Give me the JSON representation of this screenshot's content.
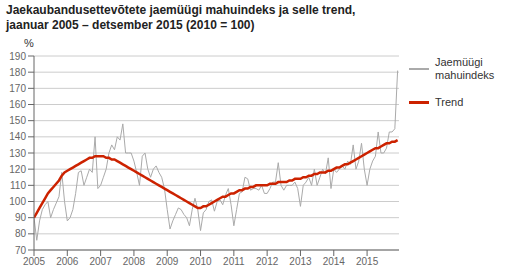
{
  "chart_data": {
    "type": "line",
    "title": "Jaekaubandusettevõtete jaemüügi mahuindeks ja selle trend,",
    "subtitle": "jaanuar 2005 – detsember 2015 (2010 = 100)",
    "y_label": "%",
    "x": [
      2005,
      2005.083333333333,
      2005.166666666667,
      2005.25,
      2005.333333333333,
      2005.416666666667,
      2005.5,
      2005.583333333333,
      2005.666666666667,
      2005.75,
      2005.833333333333,
      2005.916666666667,
      2006,
      2006.083333333333,
      2006.166666666667,
      2006.25,
      2006.333333333333,
      2006.416666666667,
      2006.5,
      2006.583333333333,
      2006.666666666667,
      2006.75,
      2006.833333333333,
      2006.916666666667,
      2007,
      2007.083333333333,
      2007.166666666667,
      2007.25,
      2007.333333333333,
      2007.416666666667,
      2007.5,
      2007.583333333333,
      2007.666666666667,
      2007.75,
      2007.833333333333,
      2007.916666666667,
      2008,
      2008.083333333333,
      2008.166666666667,
      2008.25,
      2008.333333333333,
      2008.416666666667,
      2008.5,
      2008.583333333333,
      2008.666666666667,
      2008.75,
      2008.833333333333,
      2008.916666666667,
      2009,
      2009.083333333333,
      2009.166666666667,
      2009.25,
      2009.333333333333,
      2009.416666666667,
      2009.5,
      2009.583333333333,
      2009.666666666667,
      2009.75,
      2009.833333333333,
      2009.916666666667,
      2010,
      2010.083333333333,
      2010.166666666667,
      2010.25,
      2010.333333333333,
      2010.416666666667,
      2010.5,
      2010.583333333333,
      2010.666666666667,
      2010.75,
      2010.833333333333,
      2010.916666666667,
      2011,
      2011.083333333333,
      2011.166666666667,
      2011.25,
      2011.333333333333,
      2011.416666666667,
      2011.5,
      2011.583333333333,
      2011.666666666667,
      2011.75,
      2011.833333333333,
      2011.916666666667,
      2012,
      2012.083333333333,
      2012.166666666667,
      2012.25,
      2012.333333333333,
      2012.416666666667,
      2012.5,
      2012.583333333333,
      2012.666666666667,
      2012.75,
      2012.833333333333,
      2012.916666666667,
      2013,
      2013.083333333333,
      2013.166666666667,
      2013.25,
      2013.333333333333,
      2013.416666666667,
      2013.5,
      2013.583333333333,
      2013.666666666667,
      2013.75,
      2013.833333333333,
      2013.916666666667,
      2014,
      2014.083333333333,
      2014.166666666667,
      2014.25,
      2014.333333333333,
      2014.416666666667,
      2014.5,
      2014.583333333333,
      2014.666666666667,
      2014.75,
      2014.833333333333,
      2014.916666666667,
      2015,
      2015.083333333333,
      2015.166666666667,
      2015.25,
      2015.333333333333,
      2015.416666666667,
      2015.5,
      2015.583333333333,
      2015.666666666667,
      2015.75,
      2015.833333333333,
      2015.916666666667
    ],
    "series": [
      {
        "name": "Jaemüügi\nmahuindeks",
        "color": "#aaaaaa",
        "values": [
          90,
          76,
          88,
          95,
          98,
          100,
          90,
          95,
          99,
          103,
          118,
          100,
          88,
          90,
          95,
          105,
          118,
          119,
          110,
          115,
          120,
          118,
          140,
          108,
          110,
          115,
          120,
          130,
          135,
          132,
          140,
          138,
          148,
          130,
          130,
          130,
          125,
          118,
          110,
          128,
          130,
          120,
          115,
          120,
          122,
          118,
          115,
          108,
          95,
          83,
          88,
          92,
          96,
          95,
          92,
          90,
          85,
          95,
          102,
          95,
          82,
          93,
          95,
          100,
          101,
          94,
          100,
          101,
          98,
          104,
          108,
          98,
          85,
          95,
          105,
          106,
          115,
          114,
          107,
          108,
          108,
          107,
          110,
          105,
          105,
          108,
          112,
          112,
          124,
          110,
          107,
          110,
          110,
          110,
          112,
          108,
          97,
          110,
          112,
          115,
          110,
          120,
          110,
          115,
          120,
          117,
          127,
          108,
          120,
          118,
          120,
          122,
          120,
          125,
          123,
          135,
          120,
          125,
          136,
          120,
          110,
          120,
          125,
          128,
          143,
          130,
          130,
          133,
          143,
          143,
          145,
          181
        ]
      },
      {
        "name": "Trend",
        "color": "#cc2200",
        "values": [
          90,
          93,
          96,
          99,
          102,
          105,
          107,
          109,
          111,
          113,
          116,
          118,
          119,
          120,
          121,
          122,
          123,
          124,
          125,
          126,
          127,
          127,
          128,
          128,
          128,
          128,
          127,
          127,
          126,
          126,
          125,
          124,
          123,
          122,
          121,
          120,
          119,
          118,
          117,
          116,
          115,
          114,
          113,
          112,
          111,
          110,
          109,
          108,
          107,
          106,
          105,
          104,
          103,
          102,
          101,
          100,
          99,
          98,
          97,
          96,
          96,
          97,
          97,
          98,
          99,
          100,
          101,
          102,
          103,
          103,
          104,
          105,
          105,
          106,
          107,
          107,
          108,
          108,
          109,
          109,
          110,
          110,
          110,
          110,
          110,
          111,
          111,
          111,
          112,
          112,
          112,
          112,
          113,
          113,
          114,
          114,
          114,
          115,
          115,
          116,
          116,
          117,
          117,
          118,
          118,
          118,
          119,
          119,
          120,
          121,
          121,
          122,
          123,
          123,
          124,
          125,
          126,
          127,
          128,
          129,
          130,
          131,
          132,
          133,
          133,
          134,
          135,
          136,
          136,
          137,
          137,
          138
        ]
      }
    ],
    "xlim": [
      2005,
      2015.9583333333333
    ],
    "xticks": [
      2005,
      2006,
      2007,
      2008,
      2009,
      2010,
      2011,
      2012,
      2013,
      2014,
      2015
    ],
    "ylim": [
      70,
      190
    ],
    "yticks": [
      70,
      80,
      90,
      100,
      110,
      120,
      130,
      140,
      150,
      160,
      170,
      180,
      190
    ],
    "grid": "y",
    "legend": "right"
  }
}
